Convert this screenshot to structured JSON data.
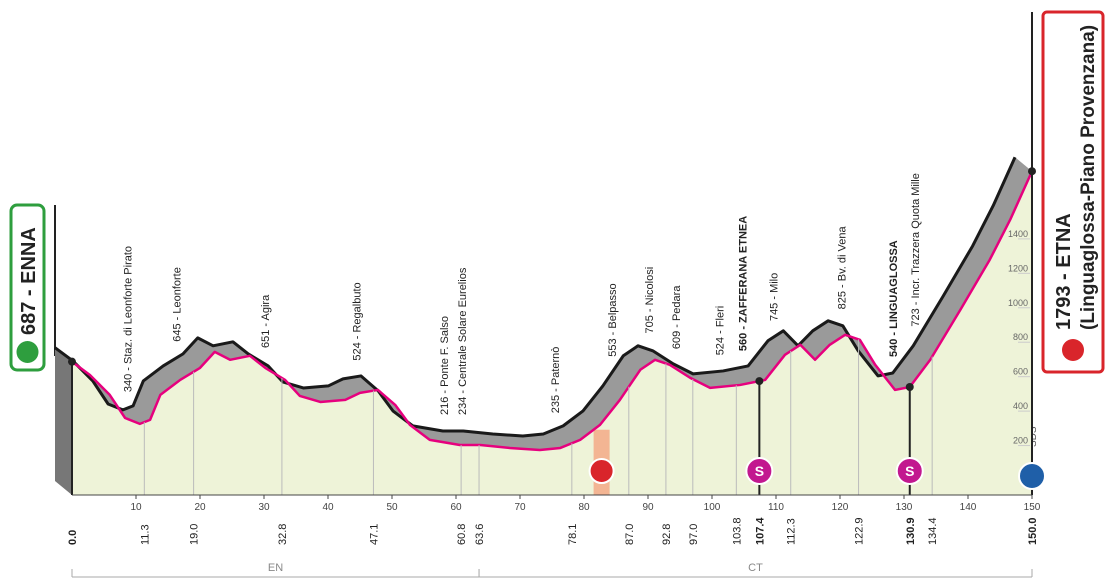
{
  "chart_data": {
    "type": "area",
    "start_label": "687 - ENNA",
    "finish_label": "1793 - ETNA",
    "finish_sublabel": "(Linguaglossa-Piano Provenzana)",
    "finish_note": "SDS",
    "color": "#e6007e",
    "fill": "#eef3d8",
    "ribbon_color": "#9a9a9a",
    "x": [
      0,
      2.8,
      5.9,
      8.3,
      10.6,
      12.2,
      13.8,
      16.9,
      20,
      22.3,
      24.7,
      27.8,
      30.2,
      33.3,
      35.6,
      38.8,
      42.7,
      45,
      47.8,
      50.5,
      52.8,
      55.9,
      60.6,
      63.8,
      68.4,
      73.1,
      76.3,
      79.4,
      82.5,
      85.6,
      88.8,
      91.1,
      93.4,
      96.6,
      99.7,
      104.4,
      108.3,
      111.4,
      113.8,
      116.1,
      118.4,
      120.8,
      123.1,
      125.5,
      128.6,
      130.9,
      134.1,
      138.8,
      143.4,
      146.6,
      150
    ],
    "values": [
      687,
      610,
      494,
      360,
      326,
      349,
      494,
      581,
      651,
      744,
      698,
      721,
      651,
      581,
      488,
      453,
      465,
      506,
      523,
      436,
      320,
      233,
      203,
      203,
      186,
      174,
      186,
      233,
      320,
      465,
      640,
      698,
      669,
      593,
      535,
      552,
      581,
      727,
      785,
      698,
      785,
      843,
      814,
      669,
      523,
      540,
      698,
      988,
      1279,
      1512,
      1793
    ],
    "xlim": [
      0,
      150
    ],
    "xticks": [
      10,
      20,
      30,
      40,
      50,
      60,
      70,
      80,
      90,
      100,
      110,
      120,
      130,
      140,
      150
    ],
    "ylim": [
      0,
      1800
    ],
    "yticks": [
      200,
      400,
      600,
      800,
      1000,
      1200,
      1400
    ],
    "waypoints": [
      {
        "km": {
          "value": 0,
          "label": "0.0"
        },
        "bold": true
      },
      {
        "km": 11.3,
        "label": "340 - Staz. di Leonforte Pirato"
      },
      {
        "km": {
          "value": 19,
          "label": "19.0"
        },
        "label": "645 - Leonforte"
      },
      {
        "km": 32.8,
        "label": "651 - Agira"
      },
      {
        "km": 47.1,
        "label": "524 - Regalbuto"
      },
      {
        "km": 60.8,
        "label": "216 - Ponte F. Salso"
      },
      {
        "km": 63.6,
        "label": "234 - Centrale Solare Eurelios"
      },
      {
        "km": 78.1,
        "label": "235 - Paternò"
      },
      {
        "km": {
          "value": 87,
          "label": "87.0"
        },
        "label": "553 - Belpasso"
      },
      {
        "km": 92.8,
        "label": "705 - Nicolosi"
      },
      {
        "km": {
          "value": 97,
          "label": "97.0"
        },
        "label": "609 - Pedara"
      },
      {
        "km": 103.8,
        "label": "524 - Fleri"
      },
      {
        "km": 107.4,
        "label": "560 - ZAFFERANA ETNEA",
        "bold": true
      },
      {
        "km": 112.3,
        "label": "745 - Milo"
      },
      {
        "km": 122.9,
        "label": "825 - Bv. di Vena"
      },
      {
        "km": 130.9,
        "label": "540 - LINGUAGLOSSA",
        "bold": true
      },
      {
        "km": 134.4,
        "label": "723 - Incr. Trazzera Quota Mille"
      },
      {
        "km": {
          "value": 150,
          "label": "150.0"
        },
        "bold": true
      }
    ],
    "sprints": [
      {
        "km": 107.4,
        "label": "S"
      },
      {
        "km": 130.9,
        "label": "S"
      }
    ],
    "feed_zone": [
      81.5,
      84
    ],
    "regions": [
      {
        "label": "EN",
        "from": 0,
        "to": 63.6
      },
      {
        "label": "CT",
        "from": 63.6,
        "to": 150
      }
    ]
  }
}
